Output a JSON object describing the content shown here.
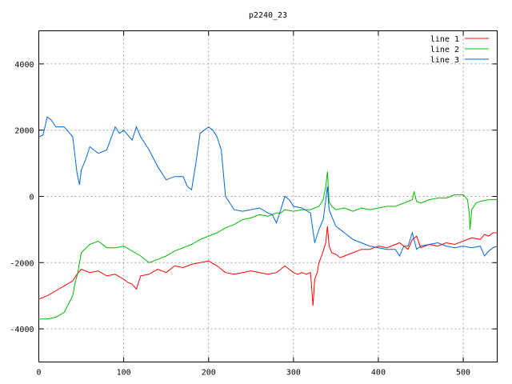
{
  "chart_data": {
    "type": "line",
    "title": "p2240_23",
    "xlabel": "",
    "ylabel": "",
    "xlim": [
      0,
      540
    ],
    "ylim": [
      -5000,
      5000
    ],
    "xticks": [
      0,
      100,
      200,
      300,
      400,
      500
    ],
    "yticks": [
      -4000,
      -2000,
      0,
      2000,
      4000
    ],
    "grid": true,
    "legend_position": "top-right",
    "series": [
      {
        "name": "line 1",
        "color": "#ff0000",
        "x": [
          0,
          10,
          20,
          30,
          40,
          45,
          50,
          60,
          70,
          80,
          90,
          100,
          105,
          110,
          115,
          120,
          130,
          140,
          150,
          160,
          170,
          180,
          190,
          200,
          210,
          220,
          230,
          240,
          250,
          260,
          270,
          280,
          285,
          290,
          295,
          300,
          305,
          310,
          315,
          320,
          321,
          323,
          325,
          328,
          330,
          333,
          335,
          338,
          340,
          342,
          345,
          350,
          355,
          360,
          370,
          380,
          390,
          400,
          410,
          420,
          425,
          430,
          435,
          440,
          445,
          450,
          460,
          470,
          480,
          490,
          500,
          510,
          520,
          525,
          530,
          535,
          540
        ],
        "y": [
          -3100,
          -3000,
          -2850,
          -2700,
          -2550,
          -2350,
          -2200,
          -2300,
          -2250,
          -2400,
          -2350,
          -2500,
          -2600,
          -2650,
          -2800,
          -2400,
          -2350,
          -2200,
          -2300,
          -2100,
          -2150,
          -2050,
          -2000,
          -1950,
          -2100,
          -2300,
          -2350,
          -2300,
          -2250,
          -2300,
          -2350,
          -2300,
          -2200,
          -2100,
          -2200,
          -2300,
          -2350,
          -2300,
          -2350,
          -2300,
          -2600,
          -3300,
          -2500,
          -2300,
          -2000,
          -1800,
          -1650,
          -1400,
          -900,
          -1500,
          -1700,
          -1750,
          -1850,
          -1800,
          -1700,
          -1600,
          -1600,
          -1500,
          -1550,
          -1450,
          -1400,
          -1500,
          -1600,
          -1300,
          -1200,
          -1550,
          -1450,
          -1500,
          -1400,
          -1450,
          -1350,
          -1250,
          -1300,
          -1150,
          -1200,
          -1100,
          -1100
        ]
      },
      {
        "name": "line 2",
        "color": "#00bb00",
        "x": [
          0,
          10,
          20,
          30,
          40,
          42,
          44,
          46,
          48,
          50,
          60,
          70,
          80,
          90,
          100,
          110,
          120,
          130,
          140,
          150,
          160,
          170,
          180,
          190,
          200,
          210,
          220,
          230,
          240,
          250,
          260,
          270,
          280,
          285,
          290,
          300,
          310,
          320,
          330,
          335,
          338,
          340,
          342,
          345,
          350,
          360,
          370,
          380,
          390,
          400,
          410,
          420,
          430,
          440,
          442,
          445,
          450,
          460,
          470,
          480,
          490,
          500,
          505,
          507,
          508,
          510,
          515,
          520,
          530,
          540
        ],
        "y": [
          -3700,
          -3700,
          -3650,
          -3500,
          -3000,
          -2700,
          -2500,
          -2300,
          -2000,
          -1700,
          -1450,
          -1350,
          -1550,
          -1550,
          -1500,
          -1650,
          -1800,
          -2000,
          -1900,
          -1800,
          -1650,
          -1550,
          -1450,
          -1300,
          -1200,
          -1100,
          -950,
          -850,
          -700,
          -650,
          -550,
          -600,
          -500,
          -500,
          -400,
          -450,
          -400,
          -400,
          -300,
          -100,
          300,
          750,
          -150,
          -300,
          -400,
          -350,
          -450,
          -350,
          -400,
          -350,
          -300,
          -300,
          -200,
          -100,
          150,
          -150,
          -200,
          -100,
          -50,
          -50,
          50,
          50,
          -100,
          -500,
          -1000,
          -400,
          -200,
          -150,
          -100,
          -100
        ]
      },
      {
        "name": "line 3",
        "color": "#0066dd",
        "x": [
          0,
          5,
          10,
          15,
          20,
          30,
          40,
          45,
          48,
          50,
          55,
          60,
          70,
          80,
          90,
          95,
          100,
          110,
          115,
          120,
          130,
          140,
          150,
          160,
          170,
          175,
          180,
          185,
          190,
          195,
          200,
          205,
          210,
          215,
          220,
          230,
          240,
          250,
          260,
          270,
          275,
          280,
          285,
          290,
          295,
          300,
          310,
          320,
          325,
          330,
          335,
          338,
          340,
          342,
          345,
          350,
          360,
          370,
          380,
          390,
          400,
          410,
          420,
          425,
          430,
          435,
          440,
          445,
          450,
          460,
          470,
          480,
          490,
          500,
          510,
          520,
          525,
          530,
          535,
          540
        ],
        "y": [
          1800,
          1850,
          2400,
          2300,
          2100,
          2100,
          1800,
          700,
          350,
          800,
          1100,
          1500,
          1300,
          1400,
          2100,
          1900,
          2000,
          1700,
          2100,
          1800,
          1400,
          900,
          500,
          600,
          600,
          300,
          200,
          1000,
          1900,
          2000,
          2100,
          2000,
          1800,
          1400,
          0,
          -400,
          -450,
          -400,
          -350,
          -500,
          -550,
          -800,
          -400,
          0,
          -100,
          -300,
          -350,
          -500,
          -1400,
          -1000,
          -700,
          -100,
          300,
          -400,
          -600,
          -900,
          -1100,
          -1300,
          -1400,
          -1500,
          -1550,
          -1600,
          -1600,
          -1800,
          -1500,
          -1500,
          -1100,
          -1600,
          -1500,
          -1450,
          -1400,
          -1500,
          -1550,
          -1500,
          -1550,
          -1500,
          -1800,
          -1650,
          -1550,
          -1500
        ]
      }
    ]
  }
}
